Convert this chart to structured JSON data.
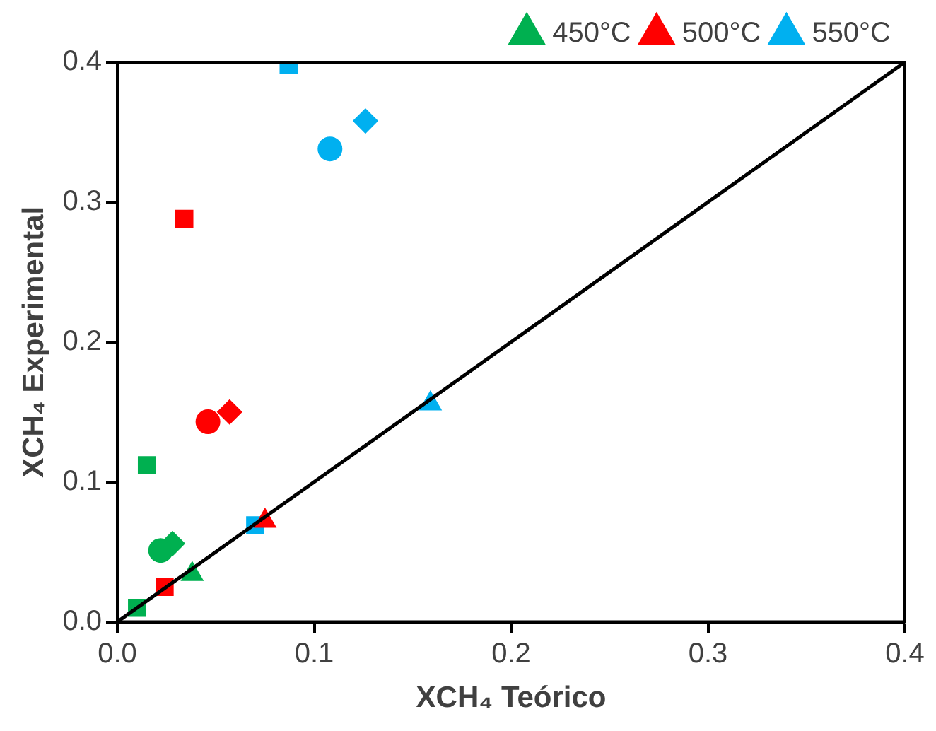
{
  "chart_data": {
    "type": "scatter",
    "xlabel": "XCH₄ Teórico",
    "ylabel": "XCH₄ Experimental",
    "xlim": [
      0,
      0.4
    ],
    "ylim": [
      0,
      0.4
    ],
    "xticks": [
      {
        "value": 0,
        "label": "0.0"
      },
      {
        "value": 0.1,
        "label": "0.1"
      },
      {
        "value": 0.2,
        "label": "0.2"
      },
      {
        "value": 0.3,
        "label": "0.3"
      },
      {
        "value": 0.4,
        "label": "0.4"
      }
    ],
    "yticks": [
      {
        "value": 0,
        "label": "0.0"
      },
      {
        "value": 0.1,
        "label": "0.1"
      },
      {
        "value": 0.2,
        "label": "0.2"
      },
      {
        "value": 0.3,
        "label": "0.3"
      },
      {
        "value": 0.4,
        "label": "0.4"
      }
    ],
    "grid": false,
    "legend": "top",
    "series": [
      {
        "type": "line",
        "color": "#000000",
        "x": [
          0,
          0.4
        ],
        "values": [
          0,
          0.4
        ],
        "marker": "none"
      },
      {
        "name": "450°C",
        "color": "#00b050",
        "marker": "triangle",
        "x": [
          0.038
        ],
        "values": [
          0.034
        ]
      },
      {
        "name": "500°C",
        "color": "#ff0000",
        "marker": "triangle",
        "x": [
          0.075
        ],
        "values": [
          0.072
        ]
      },
      {
        "name": "550°C",
        "color": "#00b0f0",
        "marker": "triangle",
        "x": [
          0.159
        ],
        "values": [
          0.156
        ]
      },
      {
        "color": "#00b050",
        "marker": "square",
        "x": [
          0.01
        ],
        "values": [
          0.01
        ]
      },
      {
        "color": "#00b050",
        "marker": "circle",
        "x": [
          0.022
        ],
        "values": [
          0.051
        ]
      },
      {
        "color": "#00b050",
        "marker": "diamond",
        "x": [
          0.028
        ],
        "values": [
          0.056
        ]
      },
      {
        "color": "#00b050",
        "marker": "square",
        "x": [
          0.015
        ],
        "values": [
          0.112
        ]
      },
      {
        "color": "#ff0000",
        "marker": "square",
        "x": [
          0.024
        ],
        "values": [
          0.025
        ]
      },
      {
        "color": "#ff0000",
        "marker": "circle",
        "x": [
          0.046
        ],
        "values": [
          0.143
        ]
      },
      {
        "color": "#ff0000",
        "marker": "diamond",
        "x": [
          0.057
        ],
        "values": [
          0.15
        ]
      },
      {
        "color": "#ff0000",
        "marker": "square",
        "x": [
          0.034
        ],
        "values": [
          0.288
        ]
      },
      {
        "color": "#00b0f0",
        "marker": "square",
        "x": [
          0.07
        ],
        "values": [
          0.069
        ]
      },
      {
        "color": "#00b0f0",
        "marker": "circle",
        "x": [
          0.108
        ],
        "values": [
          0.338
        ]
      },
      {
        "color": "#00b0f0",
        "marker": "diamond",
        "x": [
          0.126
        ],
        "values": [
          0.358
        ]
      },
      {
        "color": "#00b0f0",
        "marker": "square",
        "x": [
          0.087
        ],
        "values": [
          0.398
        ]
      }
    ]
  }
}
